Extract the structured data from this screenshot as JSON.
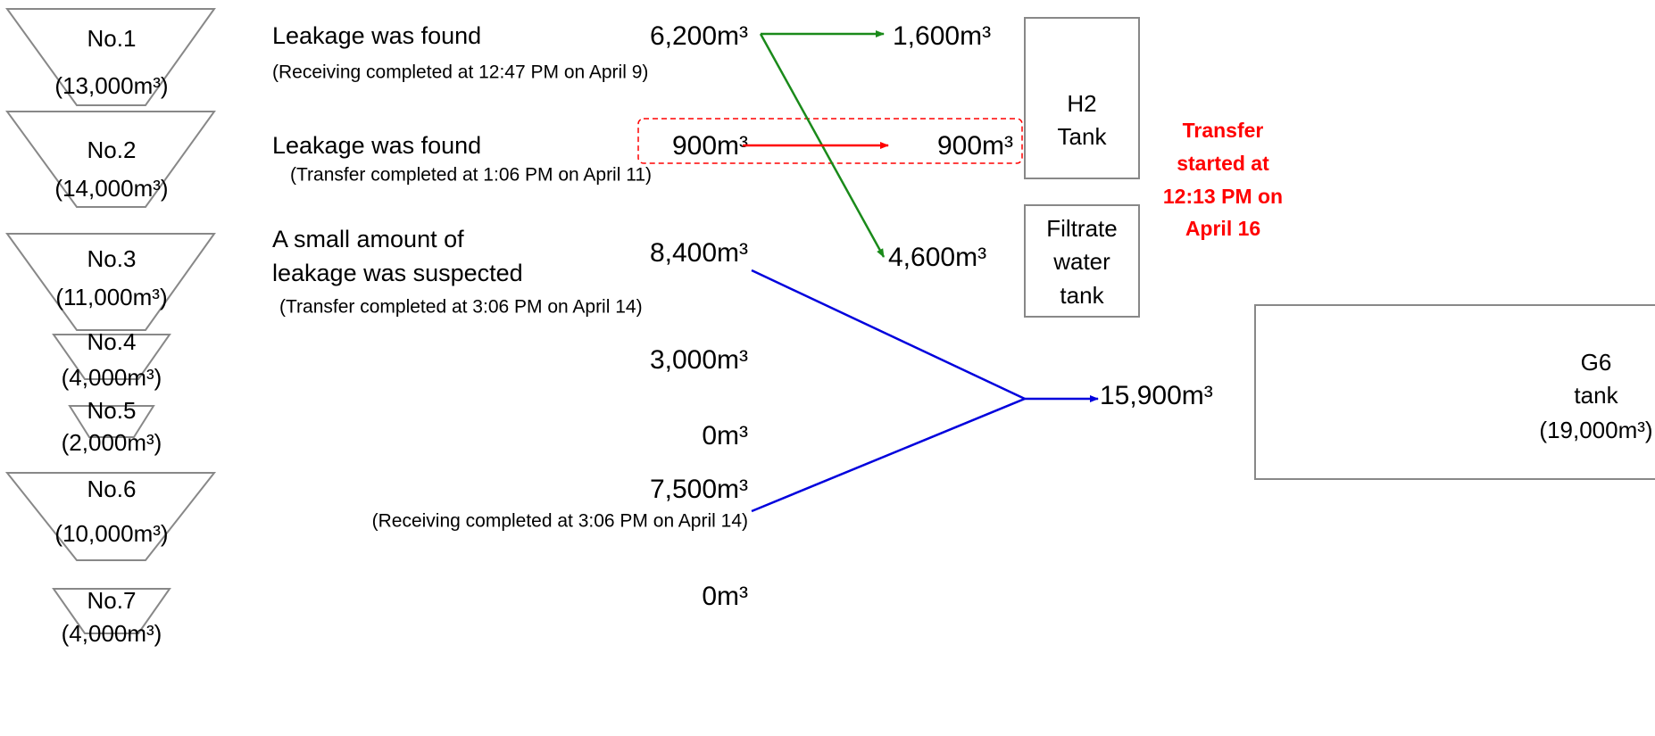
{
  "reservoirs": [
    {
      "name": "No.1",
      "capacity": "(13,000m³)"
    },
    {
      "name": "No.2",
      "capacity": "(14,000m³)"
    },
    {
      "name": "No.3",
      "capacity": "(11,000m³)"
    },
    {
      "name": "No.4",
      "capacity": "(4,000m³)"
    },
    {
      "name": "No.5",
      "capacity": "(2,000m³)"
    },
    {
      "name": "No.6",
      "capacity": "(10,000m³)"
    },
    {
      "name": "No.7",
      "capacity": "(4,000m³)"
    }
  ],
  "statuses": [
    {
      "lines": [
        "Leakage was found"
      ],
      "note": "(Receiving completed at 12:47 PM on April 9)"
    },
    {
      "lines": [
        "Leakage was found"
      ],
      "note": "(Transfer completed at 1:06 PM on April 11)"
    },
    {
      "lines": [
        "A small amount of",
        "leakage was suspected"
      ],
      "note": "(Transfer completed at 3:06 PM on April 14)"
    }
  ],
  "volume_note": "(Receiving completed at 3:06 PM on April 14)",
  "volumes": [
    "6,200m³",
    "900m³",
    "8,400m³",
    "3,000m³",
    "0m³",
    "7,500m³",
    "0m³"
  ],
  "destinations": [
    "1,600m³",
    "900m³",
    "4,600m³",
    "15,900m³"
  ],
  "tanks": {
    "h2": [
      "H2",
      "Tank"
    ],
    "filtrate": [
      "Filtrate",
      "water",
      "tank"
    ],
    "g6": [
      "G6",
      "tank",
      "(19,000m³)"
    ]
  },
  "annotation": [
    "Transfer",
    "started at",
    "12:13 PM on",
    "April 16"
  ]
}
